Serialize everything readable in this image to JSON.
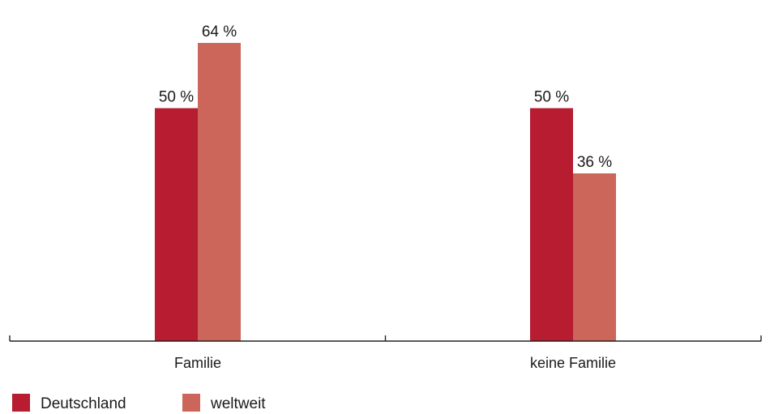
{
  "chart_data": {
    "type": "bar",
    "categories": [
      "Familie",
      "keine Familie"
    ],
    "series": [
      {
        "name": "Deutschland",
        "values": [
          50,
          50
        ],
        "color": "#b71c31"
      },
      {
        "name": "weltweit",
        "values": [
          64,
          36
        ],
        "color": "#cc665a"
      }
    ],
    "value_suffix": " %",
    "ylim": [
      0,
      100
    ],
    "grid": false,
    "legend_position": "bottom-left"
  }
}
